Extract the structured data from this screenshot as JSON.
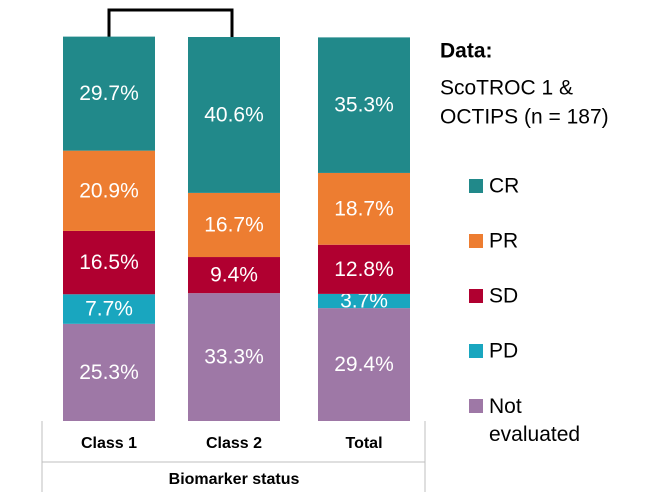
{
  "chart_data": {
    "type": "stacked_bar",
    "categories": [
      "Class 1",
      "Class 2",
      "Total"
    ],
    "xlabel": "Biomarker status",
    "legend_title": "Data:",
    "legend_subtitle": [
      "ScoTROC 1 &",
      "OCTIPS (n = 187)"
    ],
    "ylim": [
      0,
      100
    ],
    "series": [
      {
        "name": "CR",
        "color": "#21898a",
        "values": [
          29.7,
          40.6,
          35.3
        ],
        "value_labels": [
          "29.7%",
          "40.6%",
          "35.3%"
        ]
      },
      {
        "name": "PR",
        "color": "#ed7d31",
        "values": [
          20.9,
          16.7,
          18.7
        ],
        "value_labels": [
          "20.9%",
          "16.7%",
          "18.7%"
        ]
      },
      {
        "name": "SD",
        "color": "#b00030",
        "values": [
          16.5,
          9.4,
          12.8
        ],
        "value_labels": [
          "16.5%",
          "9.4%",
          "12.8%"
        ]
      },
      {
        "name": "PD",
        "color": "#19a6bf",
        "values": [
          7.7,
          null,
          3.7
        ],
        "value_labels": [
          "7.7%",
          null,
          "3.7%"
        ]
      },
      {
        "name": "Not evaluated",
        "color": "#9e78a6",
        "values": [
          25.3,
          33.3,
          29.4
        ],
        "value_labels": [
          "25.3%",
          "33.3%",
          "29.4%"
        ]
      }
    ]
  }
}
